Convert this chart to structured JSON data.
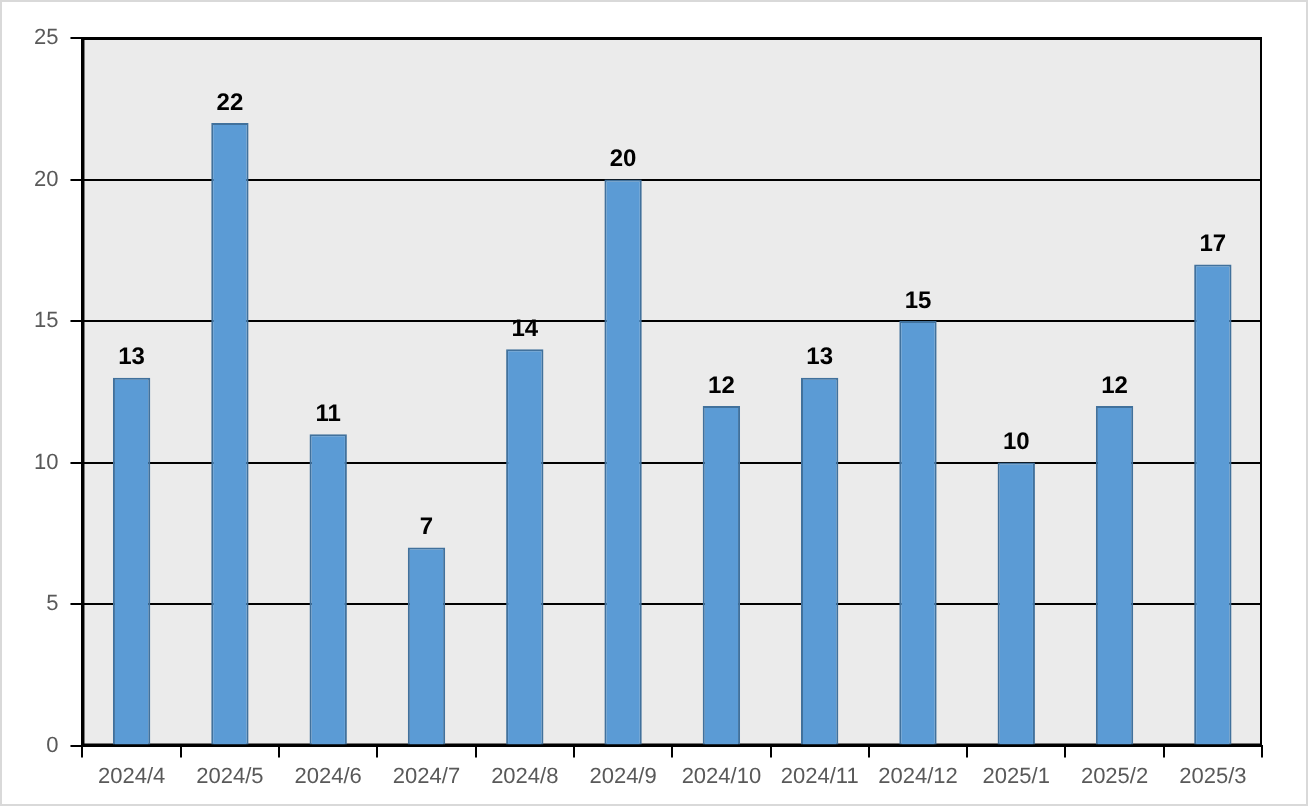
{
  "chart_data": {
    "type": "bar",
    "categories": [
      "2024/4",
      "2024/5",
      "2024/6",
      "2024/7",
      "2024/8",
      "2024/9",
      "2024/10",
      "2024/11",
      "2024/12",
      "2025/1",
      "2025/2",
      "2025/3"
    ],
    "values": [
      13,
      22,
      11,
      7,
      14,
      20,
      12,
      13,
      15,
      10,
      12,
      17
    ],
    "color": "#5b9bd5",
    "ylim": [
      0,
      25
    ],
    "yticks": [
      0,
      5,
      10,
      15,
      20,
      25
    ],
    "grid": "y",
    "data_labels": true
  }
}
